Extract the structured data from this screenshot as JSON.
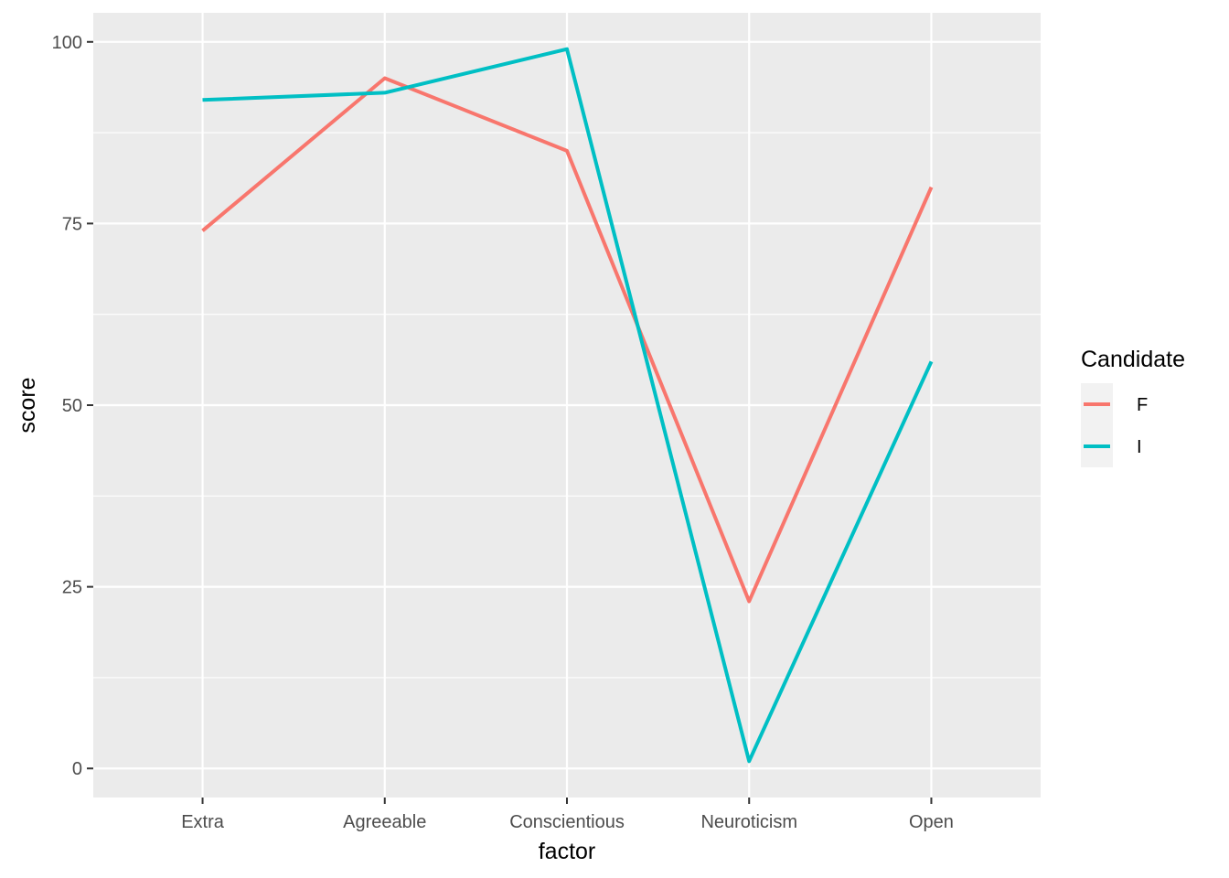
{
  "chart_data": {
    "type": "line",
    "title": "",
    "xlabel": "factor",
    "ylabel": "score",
    "categories": [
      "Extra",
      "Agreeable",
      "Conscientious",
      "Neuroticism",
      "Open"
    ],
    "ylim": [
      -4,
      104
    ],
    "yticks": [
      0,
      25,
      50,
      75,
      100
    ],
    "grid": true,
    "legend": {
      "title": "Candidate",
      "placement": "right"
    },
    "series": [
      {
        "name": "F",
        "color": "#F8766D",
        "values": [
          74,
          95,
          85,
          23,
          80
        ]
      },
      {
        "name": "I",
        "color": "#00BFC4",
        "values": [
          92,
          93,
          99,
          1,
          56
        ]
      }
    ],
    "colors": {
      "panel": "#EBEBEB",
      "grid": "#FFFFFF",
      "legend_key_bg": "#F2F2F2"
    }
  }
}
